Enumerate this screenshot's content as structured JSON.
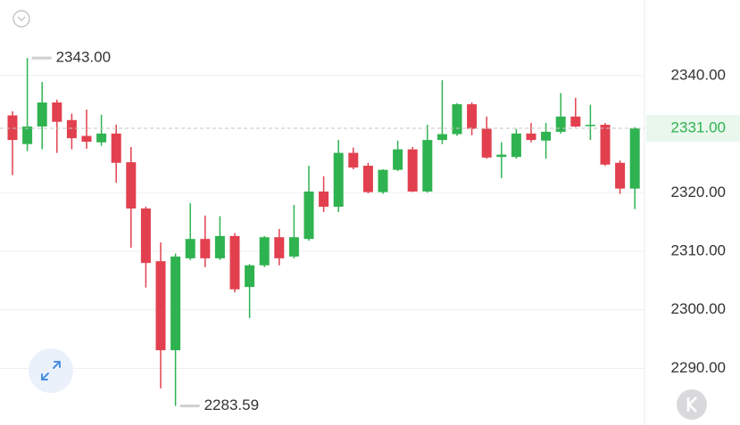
{
  "chart_data": {
    "type": "candlestick",
    "open": [
      2333.2,
      2328.3,
      2331.3,
      2335.4,
      2332.4,
      2329.7,
      2328.6,
      2330.1,
      2325.2,
      2317.3,
      2308.3,
      2293.1,
      2308.8,
      2312.1,
      2308.8,
      2312.6,
      2303.9,
      2307.6,
      2312.4,
      2309.1,
      2312.1,
      2320.2,
      2317.6,
      2326.8,
      2324.6,
      2320.1,
      2323.9,
      2327.4,
      2320.2,
      2329.0,
      2330.0,
      2335.1,
      2330.9,
      2326.1,
      2326.1,
      2330.1,
      2328.9,
      2330.4,
      2333.0,
      2331.5,
      2331.6,
      2325.1,
      2320.7
    ],
    "high": [
      2333.9,
      2343.0,
      2338.9,
      2335.9,
      2333.5,
      2334.2,
      2333.3,
      2331.6,
      2327.8,
      2317.6,
      2311.5,
      2309.6,
      2318.2,
      2316.1,
      2316.0,
      2313.1,
      2307.8,
      2312.6,
      2313.8,
      2317.9,
      2324.6,
      2322.8,
      2329.0,
      2327.7,
      2325.1,
      2324.0,
      2328.9,
      2327.8,
      2331.6,
      2339.2,
      2335.3,
      2335.4,
      2333.0,
      2328.6,
      2330.9,
      2331.9,
      2331.9,
      2337.0,
      2336.2,
      2335.0,
      2331.9,
      2325.5,
      2331.2
    ],
    "low": [
      2323.0,
      2327.1,
      2327.4,
      2326.8,
      2327.4,
      2327.5,
      2328.0,
      2321.7,
      2310.6,
      2303.8,
      2286.6,
      2283.59,
      2308.5,
      2307.3,
      2308.5,
      2303.0,
      2298.6,
      2307.3,
      2307.6,
      2308.8,
      2311.8,
      2316.7,
      2316.7,
      2324.0,
      2319.9,
      2319.8,
      2323.7,
      2320.1,
      2320.0,
      2328.3,
      2329.7,
      2329.8,
      2325.8,
      2322.5,
      2325.8,
      2328.6,
      2325.8,
      2330.1,
      2331.2,
      2329.0,
      2324.6,
      2319.8,
      2317.2
    ],
    "close": [
      2329.0,
      2331.3,
      2335.4,
      2332.1,
      2329.3,
      2328.7,
      2330.1,
      2325.1,
      2317.3,
      2308.0,
      2293.1,
      2309.1,
      2312.1,
      2308.8,
      2312.6,
      2303.5,
      2307.6,
      2312.4,
      2308.8,
      2312.4,
      2320.2,
      2317.6,
      2326.8,
      2324.3,
      2320.1,
      2323.9,
      2327.4,
      2320.2,
      2329.0,
      2330.0,
      2335.1,
      2330.9,
      2326.0,
      2326.5,
      2330.1,
      2329.0,
      2330.4,
      2333.0,
      2331.3,
      2331.6,
      2324.8,
      2320.7,
      2331.0
    ],
    "up_color": "#2fb350",
    "down_color": "#e2404f",
    "ylim": [
      2281.4,
      2352.9
    ],
    "yticks": [
      {
        "value": 2290,
        "label": "2290.00"
      },
      {
        "value": 2300,
        "label": "2300.00"
      },
      {
        "value": 2310,
        "label": "2310.00"
      },
      {
        "value": 2320,
        "label": "2320.00"
      },
      {
        "value": 2340,
        "label": "2340.00"
      }
    ],
    "grid": true,
    "high_label": "2343.00",
    "low_label": "2283.59",
    "last_price": {
      "value": 2331,
      "label": "2331.00"
    }
  }
}
